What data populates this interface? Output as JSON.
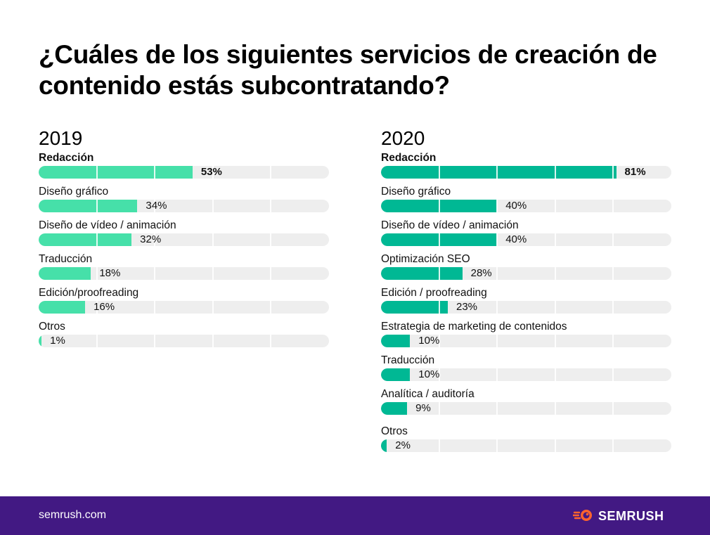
{
  "title": "¿Cuáles de los siguientes servicios de creación de contenido estás subcontratando?",
  "footer": {
    "url": "semrush.com",
    "brand": "SEMRUSH",
    "brand_color": "#421983",
    "logo_icon": "semrush-fireball-icon",
    "logo_icon_color": "#ff642d"
  },
  "chart_data": [
    {
      "type": "bar",
      "orientation": "horizontal",
      "title": "2019",
      "color": "#46e0a9",
      "track_color": "#eeeeee",
      "xlim": [
        0,
        100
      ],
      "grid": true,
      "grid_step": 20,
      "categories": [
        "Redacción",
        "Diseño gráfico",
        "Diseño de vídeo / animación",
        "Traducción",
        "Edición/proofreading",
        "Otros"
      ],
      "values": [
        53,
        34,
        32,
        18,
        16,
        1
      ],
      "value_labels": [
        "53%",
        "34%",
        "32%",
        "18%",
        "16%",
        "1%"
      ],
      "highlight_index": 0
    },
    {
      "type": "bar",
      "orientation": "horizontal",
      "title": "2020",
      "color": "#00b894",
      "track_color": "#eeeeee",
      "xlim": [
        0,
        100
      ],
      "grid": true,
      "grid_step": 20,
      "categories": [
        "Redacción",
        "Diseño gráfico",
        "Diseño de vídeo / animación",
        "Optimización SEO",
        "Edición / proofreading",
        "Estrategia de marketing de contenidos",
        "Traducción",
        "Analítica / auditoría",
        "Otros"
      ],
      "values": [
        81,
        40,
        40,
        28,
        23,
        10,
        10,
        9,
        2
      ],
      "value_labels": [
        "81%",
        "40%",
        "40%",
        "28%",
        "23%",
        "10%",
        "10%",
        "9%",
        "2%"
      ],
      "highlight_index": 0
    }
  ]
}
